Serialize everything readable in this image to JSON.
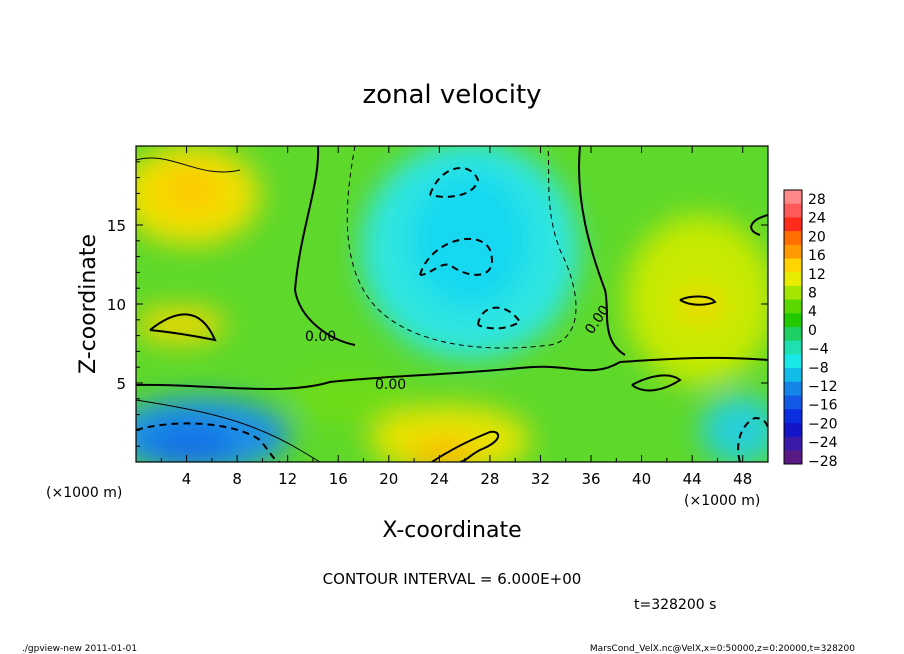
{
  "chart_data": {
    "type": "heatmap",
    "title": "zonal velocity",
    "xlabel": "X-coordinate",
    "ylabel": "Z-coordinate",
    "x_unit_label": "(×1000 m)",
    "y_unit_label": "(×1000 m)",
    "xlim": [
      0,
      50
    ],
    "ylim": [
      0,
      20
    ],
    "x_ticks": [
      "4",
      "8",
      "12",
      "16",
      "20",
      "24",
      "28",
      "32",
      "36",
      "40",
      "44",
      "48"
    ],
    "y_ticks": [
      "5",
      "10",
      "15"
    ],
    "contour_interval_label": "CONTOUR INTERVAL = 6.000E+00",
    "contour_labels": [
      "0.00",
      "0.00",
      "0.00"
    ],
    "time_label": "t=328200 s",
    "colorbar": {
      "ticks": [
        "28",
        "24",
        "20",
        "16",
        "12",
        "8",
        "4",
        "0",
        "−4",
        "−8",
        "−12",
        "−16",
        "−20",
        "−24",
        "−28"
      ],
      "colors": [
        "#ff8888",
        "#ff5a5a",
        "#ff2c1c",
        "#ff6e00",
        "#ff9a00",
        "#ffd400",
        "#e8ec00",
        "#a4e600",
        "#5ad800",
        "#22c800",
        "#1ed064",
        "#1ee0b0",
        "#18e8e8",
        "#10bce8",
        "#1484e8",
        "#1458e6",
        "#0a2ee0",
        "#1414c8",
        "#3a1aa8",
        "#5a1a86"
      ]
    },
    "approx_field_regions": [
      {
        "region": "upper left (x 0–10, z 13–20)",
        "value_range": [
          6,
          14
        ]
      },
      {
        "region": "upper center (x 20–34, z 7–20)",
        "value_range": [
          -12,
          -6
        ]
      },
      {
        "region": "right (x 40–50, z 7–17)",
        "value_range": [
          6,
          12
        ]
      },
      {
        "region": "lower left (x 0–12, z 0–3)",
        "value_range": [
          -18,
          -10
        ]
      },
      {
        "region": "lower center (x 22–36, z 0–4)",
        "value_range": [
          8,
          14
        ]
      }
    ]
  },
  "footer": {
    "left": "./gpview-new   2011-01-01",
    "right": "MarsCond_VelX.nc@VelX,x=0:50000,z=0:20000,t=328200"
  }
}
